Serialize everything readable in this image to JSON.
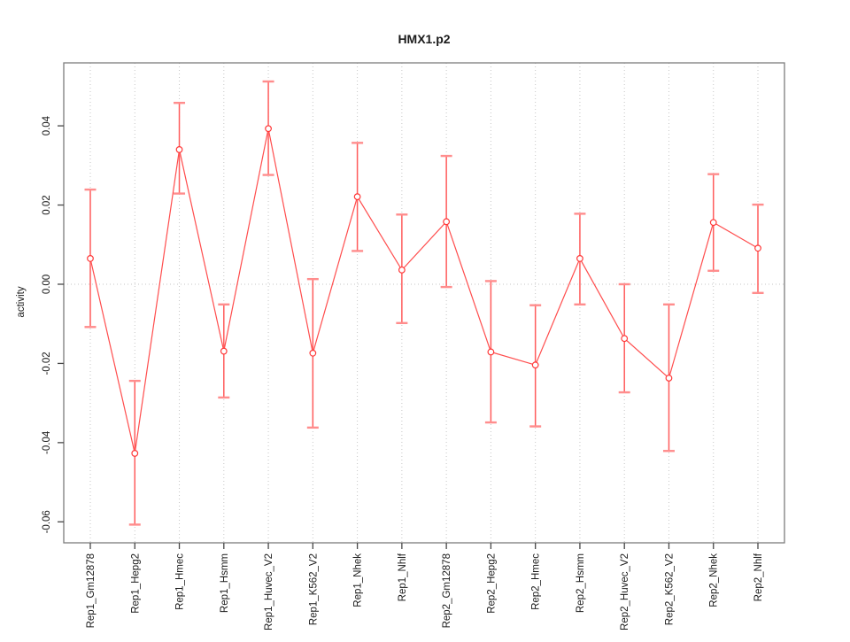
{
  "title": "HMX1.p2",
  "chart_data": {
    "type": "line",
    "title": "HMX1.p2",
    "xlabel": "",
    "ylabel": "activity",
    "grid": "dotted vertical gridline at every category; dotted horizontal line at y=0",
    "legend": "none",
    "point_style": "open circles with error bars, connected by line",
    "categories": [
      "Rep1_Gm12878",
      "Rep1_Hepg2",
      "Rep1_Hmec",
      "Rep1_Hsmm",
      "Rep1_Huvec_V2",
      "Rep1_K562_V2",
      "Rep1_Nhek",
      "Rep1_Nhlf",
      "Rep2_Gm12878",
      "Rep2_Hepg2",
      "Rep2_Hmec",
      "Rep2_Hsmm",
      "Rep2_Huvec_V2",
      "Rep2_K562_V2",
      "Rep2_Nhek",
      "Rep2_Nhlf"
    ],
    "series": [
      {
        "name": "activity",
        "values": [
          0.0065,
          -0.0427,
          0.034,
          -0.0169,
          0.0393,
          -0.0174,
          0.0221,
          0.0036,
          0.0158,
          -0.0171,
          -0.0204,
          0.0065,
          -0.0137,
          -0.0237,
          0.0156,
          0.0091
        ],
        "lower": [
          -0.0108,
          -0.0607,
          0.0229,
          -0.0286,
          0.0276,
          -0.0362,
          0.0084,
          -0.0098,
          -0.0007,
          -0.0349,
          -0.0359,
          -0.0051,
          -0.0273,
          -0.0421,
          0.0034,
          -0.0022
        ],
        "upper": [
          0.0239,
          -0.0244,
          0.0458,
          -0.0051,
          0.0512,
          0.0013,
          0.0357,
          0.0176,
          0.0324,
          0.0008,
          -0.0053,
          0.0178,
          0.0,
          -0.0051,
          0.0278,
          0.0201
        ]
      }
    ],
    "ylim": [
      -0.0653,
      0.0559
    ],
    "yticks": [
      0.04,
      0.02,
      0,
      -0.02,
      -0.04,
      -0.06
    ],
    "ytick_labels": [
      "0.04",
      "0.02",
      "0.00",
      "-0.02",
      "-0.04",
      "-0.06"
    ],
    "colors": {
      "line": "#ff4d4d",
      "point_stroke": "#ff3838",
      "point_fill": "#ffffff",
      "errorbar": "#ff5c5c",
      "cap": "#ff8d8d",
      "grid": "#c6c6c6",
      "zero_line": "#c6c6c6",
      "box": "#7c7c7c",
      "tick": "#474747",
      "text": "#1a1a1a",
      "background": "#ffffff"
    }
  }
}
